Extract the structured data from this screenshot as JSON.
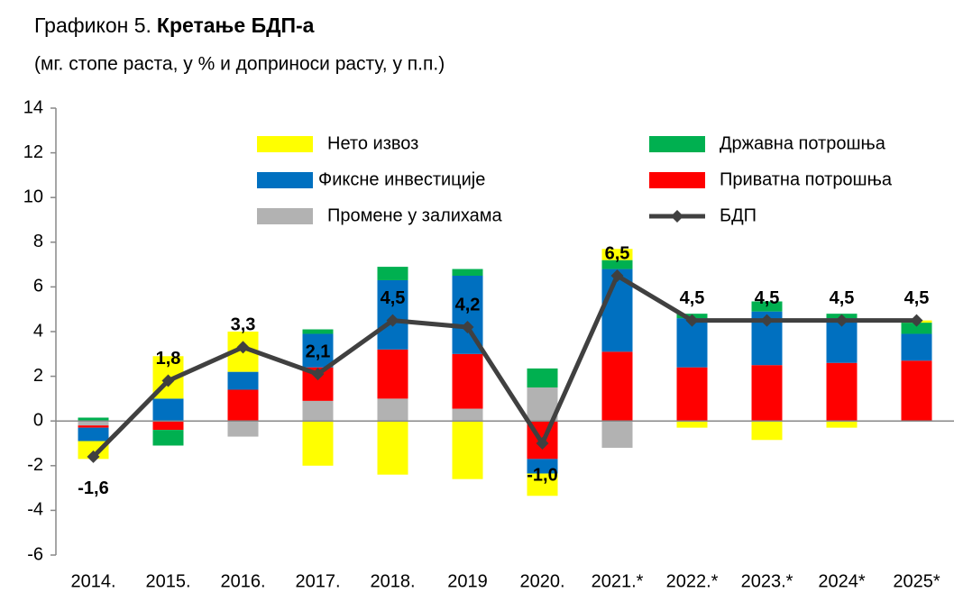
{
  "chart_data": {
    "type": "stacked_bar_line",
    "title_label": "Графикон 5.",
    "title": "Кретање БДП-а",
    "subtitle": "(мг. стопе раста, у % и доприноси расту, у п.п.)",
    "categories": [
      "2014.",
      "2015.",
      "2016.",
      "2017.",
      "2018.",
      "2019",
      "2020.",
      "2021.*",
      "2022.*",
      "2023.*",
      "2024*",
      "2025*"
    ],
    "series": [
      {
        "name": "Промене у залихама",
        "color": "#b2b2b2",
        "type": "bar",
        "values": [
          -0.2,
          0,
          -0.7,
          0.9,
          1.0,
          0.55,
          1.5,
          -1.2,
          0,
          0,
          0,
          0
        ]
      },
      {
        "name": "Приватна потрошња",
        "color": "#ff0000",
        "type": "bar",
        "values": [
          -0.1,
          -0.4,
          1.4,
          1.5,
          2.2,
          2.45,
          -1.7,
          3.1,
          2.4,
          2.5,
          2.6,
          2.7
        ]
      },
      {
        "name": "Фиксне инвестиције",
        "color": "#0070c0",
        "type": "bar",
        "values": [
          -0.6,
          1.0,
          0.8,
          1.5,
          3.1,
          3.5,
          -0.65,
          3.7,
          2.2,
          2.4,
          2.0,
          1.2
        ]
      },
      {
        "name": "Државна потрошња",
        "color": "#00b050",
        "type": "bar",
        "values": [
          0.15,
          -0.7,
          0,
          0.2,
          0.6,
          0.3,
          0.85,
          0.4,
          0.2,
          0.45,
          0.2,
          0.5
        ]
      },
      {
        "name": "Нето извоз",
        "color": "#ffff00",
        "type": "bar",
        "values": [
          -0.8,
          1.9,
          1.8,
          -2.0,
          -2.4,
          -2.6,
          -1.0,
          0.5,
          -0.3,
          -0.85,
          -0.3,
          0.1
        ]
      },
      {
        "name": "БДП",
        "color": "#404040",
        "type": "line",
        "values": [
          -1.6,
          1.8,
          3.3,
          2.1,
          4.5,
          4.2,
          -1.0,
          6.5,
          4.5,
          4.5,
          4.5,
          4.5
        ],
        "value_labels": [
          "-1,6",
          "1,8",
          "3,3",
          "2,1",
          "4,5",
          "4,2",
          "-1,0",
          "6,5",
          "4,5",
          "4,5",
          "4,5",
          "4,5"
        ]
      }
    ],
    "ylim": [
      -6,
      14
    ],
    "yticks": [
      -6,
      -4,
      -2,
      0,
      2,
      4,
      6,
      8,
      10,
      12,
      14
    ],
    "grid": false
  }
}
